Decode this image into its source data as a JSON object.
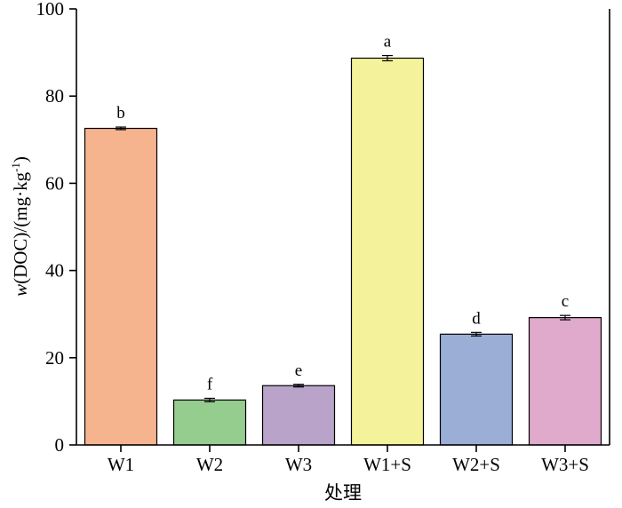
{
  "chart_data": {
    "type": "bar",
    "title": "",
    "xlabel": "处理",
    "ylabel": {
      "italic": "w",
      "main": "(DOC)/(mg·kg",
      "sup": "-1",
      "close": ")"
    },
    "ylim": [
      0,
      100
    ],
    "yticks": [
      0,
      20,
      40,
      60,
      80,
      100
    ],
    "categories": [
      "W1",
      "W2",
      "W3",
      "W1+S",
      "W2+S",
      "W3+S"
    ],
    "values": [
      72.6,
      10.3,
      13.6,
      88.7,
      25.4,
      29.2
    ],
    "errors": [
      0.3,
      0.4,
      0.3,
      0.6,
      0.4,
      0.5
    ],
    "significance": [
      "b",
      "f",
      "e",
      "a",
      "d",
      "c"
    ],
    "colors": [
      "#f6b48e",
      "#95cd8f",
      "#b9a3c9",
      "#f4f29a",
      "#9aaed6",
      "#dfaacb"
    ],
    "grid": false
  }
}
